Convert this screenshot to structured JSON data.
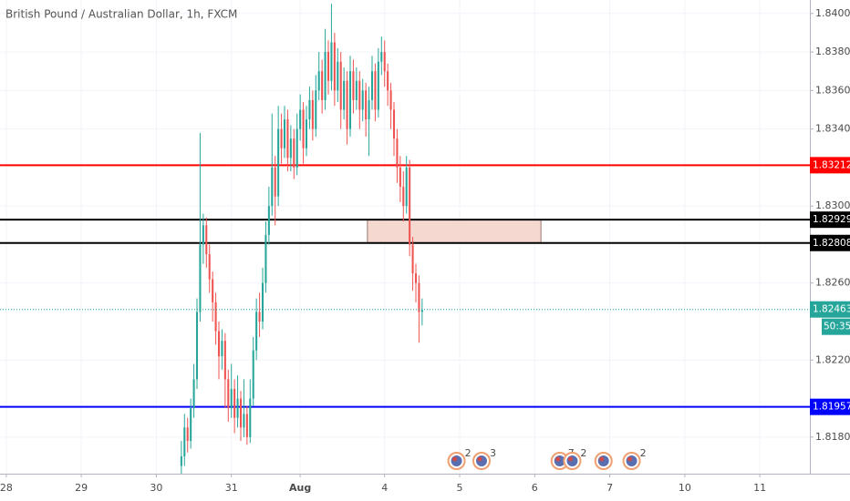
{
  "chart_data": {
    "type": "candlestick",
    "title": "British Pound / Australian Dollar, 1h, FXCM",
    "up_color": "#26a69a",
    "down_color": "#ef5350",
    "x": [
      56,
      57,
      58,
      59,
      60,
      61,
      62,
      63,
      64,
      65,
      66,
      67,
      68,
      69,
      70,
      71,
      72,
      73,
      74,
      75,
      76,
      77,
      78,
      79,
      80,
      81,
      82,
      83,
      84,
      85,
      86,
      87,
      88,
      89,
      90,
      91,
      92,
      93,
      94,
      95,
      96,
      97,
      98,
      99,
      100,
      101,
      102,
      103,
      104,
      105,
      106,
      107,
      108,
      109,
      110,
      111,
      112,
      113,
      114,
      115,
      116,
      117,
      118,
      119,
      120,
      121,
      122,
      123,
      124,
      125,
      126,
      127,
      128,
      129,
      130,
      131,
      132,
      133
    ],
    "open": [
      1.8165,
      1.817,
      1.8185,
      1.8178,
      1.8195,
      1.821,
      1.8245,
      1.828,
      1.829,
      1.8275,
      1.8262,
      1.825,
      1.8235,
      1.8222,
      1.823,
      1.821,
      1.8195,
      1.8205,
      1.819,
      1.82,
      1.8185,
      1.8192,
      1.818,
      1.82,
      1.8225,
      1.8245,
      1.824,
      1.826,
      1.8285,
      1.83,
      1.832,
      1.8305,
      1.834,
      1.833,
      1.8345,
      1.8325,
      1.8335,
      1.832,
      1.834,
      1.835,
      1.833,
      1.8345,
      1.8355,
      1.834,
      1.836,
      1.837,
      1.8355,
      1.838,
      1.8365,
      1.8385,
      1.836,
      1.8375,
      1.835,
      1.8365,
      1.834,
      1.837,
      1.8355,
      1.8365,
      1.835,
      1.836,
      1.8345,
      1.8355,
      1.837,
      1.835,
      1.8375,
      1.838,
      1.837,
      1.836,
      1.835,
      1.8335,
      1.832,
      1.831,
      1.83,
      1.832,
      1.828,
      1.8265,
      1.826,
      1.8245
    ],
    "high": [
      1.8178,
      1.8192,
      1.819,
      1.82,
      1.8218,
      1.8252,
      1.8338,
      1.8296,
      1.8294,
      1.828,
      1.8266,
      1.8255,
      1.824,
      1.8236,
      1.8234,
      1.8215,
      1.8218,
      1.821,
      1.8212,
      1.8204,
      1.821,
      1.8196,
      1.821,
      1.8232,
      1.8252,
      1.8255,
      1.8268,
      1.8292,
      1.831,
      1.8348,
      1.8326,
      1.8352,
      1.8348,
      1.8352,
      1.835,
      1.8342,
      1.834,
      1.8348,
      1.8358,
      1.8354,
      1.8352,
      1.8362,
      1.836,
      1.8368,
      1.838,
      1.8376,
      1.8392,
      1.8386,
      1.8405,
      1.839,
      1.8382,
      1.838,
      1.8372,
      1.837,
      1.8378,
      1.8376,
      1.8372,
      1.837,
      1.8366,
      1.8364,
      1.8362,
      1.8378,
      1.8374,
      1.8382,
      1.8388,
      1.8386,
      1.8374,
      1.8364,
      1.8354,
      1.834,
      1.8326,
      1.8318,
      1.8326,
      1.8324,
      1.8284,
      1.827,
      1.8264,
      1.8252
    ],
    "low": [
      1.8161,
      1.8165,
      1.8172,
      1.8174,
      1.819,
      1.8205,
      1.824,
      1.827,
      1.8268,
      1.8255,
      1.824,
      1.8228,
      1.821,
      1.8215,
      1.8195,
      1.8188,
      1.819,
      1.8182,
      1.8185,
      1.8178,
      1.818,
      1.8176,
      1.8177,
      1.8196,
      1.822,
      1.8232,
      1.8236,
      1.8255,
      1.828,
      1.8295,
      1.829,
      1.83,
      1.8322,
      1.8325,
      1.8318,
      1.8318,
      1.8314,
      1.8316,
      1.8334,
      1.8322,
      1.8326,
      1.834,
      1.8334,
      1.8336,
      1.8355,
      1.8348,
      1.835,
      1.8358,
      1.836,
      1.8352,
      1.8354,
      1.834,
      1.8345,
      1.8332,
      1.8336,
      1.8348,
      1.835,
      1.834,
      1.8344,
      1.8336,
      1.8326,
      1.835,
      1.8344,
      1.8346,
      1.8368,
      1.8362,
      1.8352,
      1.834,
      1.8326,
      1.8312,
      1.8302,
      1.8292,
      1.8296,
      1.8274,
      1.8256,
      1.825,
      1.8229,
      1.8238
    ],
    "close": [
      1.817,
      1.8185,
      1.8178,
      1.8195,
      1.821,
      1.8245,
      1.828,
      1.829,
      1.8275,
      1.8262,
      1.825,
      1.8235,
      1.8222,
      1.823,
      1.821,
      1.8195,
      1.8205,
      1.819,
      1.82,
      1.8185,
      1.8192,
      1.818,
      1.82,
      1.8225,
      1.8245,
      1.824,
      1.826,
      1.8285,
      1.83,
      1.832,
      1.8305,
      1.834,
      1.833,
      1.8345,
      1.8325,
      1.8335,
      1.832,
      1.834,
      1.835,
      1.833,
      1.8345,
      1.8355,
      1.834,
      1.836,
      1.837,
      1.8355,
      1.838,
      1.8365,
      1.8385,
      1.836,
      1.8375,
      1.835,
      1.8365,
      1.834,
      1.837,
      1.8355,
      1.8365,
      1.835,
      1.836,
      1.8345,
      1.8355,
      1.837,
      1.835,
      1.8375,
      1.838,
      1.837,
      1.836,
      1.835,
      1.8335,
      1.832,
      1.831,
      1.83,
      1.832,
      1.828,
      1.8265,
      1.826,
      1.8245,
      1.8246
    ],
    "xlim": [
      -2,
      257
    ],
    "ylim": [
      1.8161,
      1.8407
    ],
    "xticks": [
      {
        "value": 0,
        "label": "28"
      },
      {
        "value": 24,
        "label": "29"
      },
      {
        "value": 48,
        "label": "30"
      },
      {
        "value": 72,
        "label": "31"
      },
      {
        "value": 94,
        "label": "Aug"
      },
      {
        "value": 121,
        "label": "4"
      },
      {
        "value": 145,
        "label": "5"
      },
      {
        "value": 169,
        "label": "6"
      },
      {
        "value": 193,
        "label": "7"
      },
      {
        "value": 217,
        "label": "10"
      },
      {
        "value": 241,
        "label": "11"
      }
    ],
    "yticks": [
      {
        "value": 1.818,
        "label": "1.81800"
      },
      {
        "value": 1.822,
        "label": "1.82200"
      },
      {
        "value": 1.826,
        "label": "1.82600"
      },
      {
        "value": 1.83,
        "label": "1.83000"
      },
      {
        "value": 1.834,
        "label": "1.83400"
      },
      {
        "value": 1.836,
        "label": "1.83600"
      },
      {
        "value": 1.838,
        "label": "1.83800"
      },
      {
        "value": 1.84,
        "label": "1.84000"
      }
    ],
    "grid": true,
    "levels": [
      {
        "value": 1.83212,
        "color": "#ff0000"
      },
      {
        "value": 1.82929,
        "color": "#000000"
      },
      {
        "value": 1.82808,
        "color": "#000000"
      },
      {
        "value": 1.81957,
        "color": "#0000ff"
      }
    ],
    "zone": {
      "x": [
        115.5,
        171
      ],
      "y": [
        1.82929,
        1.82808
      ],
      "color": "#f5d9d0"
    },
    "last_price": {
      "value": 1.82463,
      "color": "#26a69a",
      "countdown": "50:35"
    },
    "events": [
      {
        "x": 144,
        "label": "2"
      },
      {
        "x": 152,
        "label": "3"
      },
      {
        "x": 177,
        "label": "7"
      },
      {
        "x": 181,
        "label": "2"
      },
      {
        "x": 191
      },
      {
        "x": 200,
        "label": "2"
      }
    ]
  }
}
